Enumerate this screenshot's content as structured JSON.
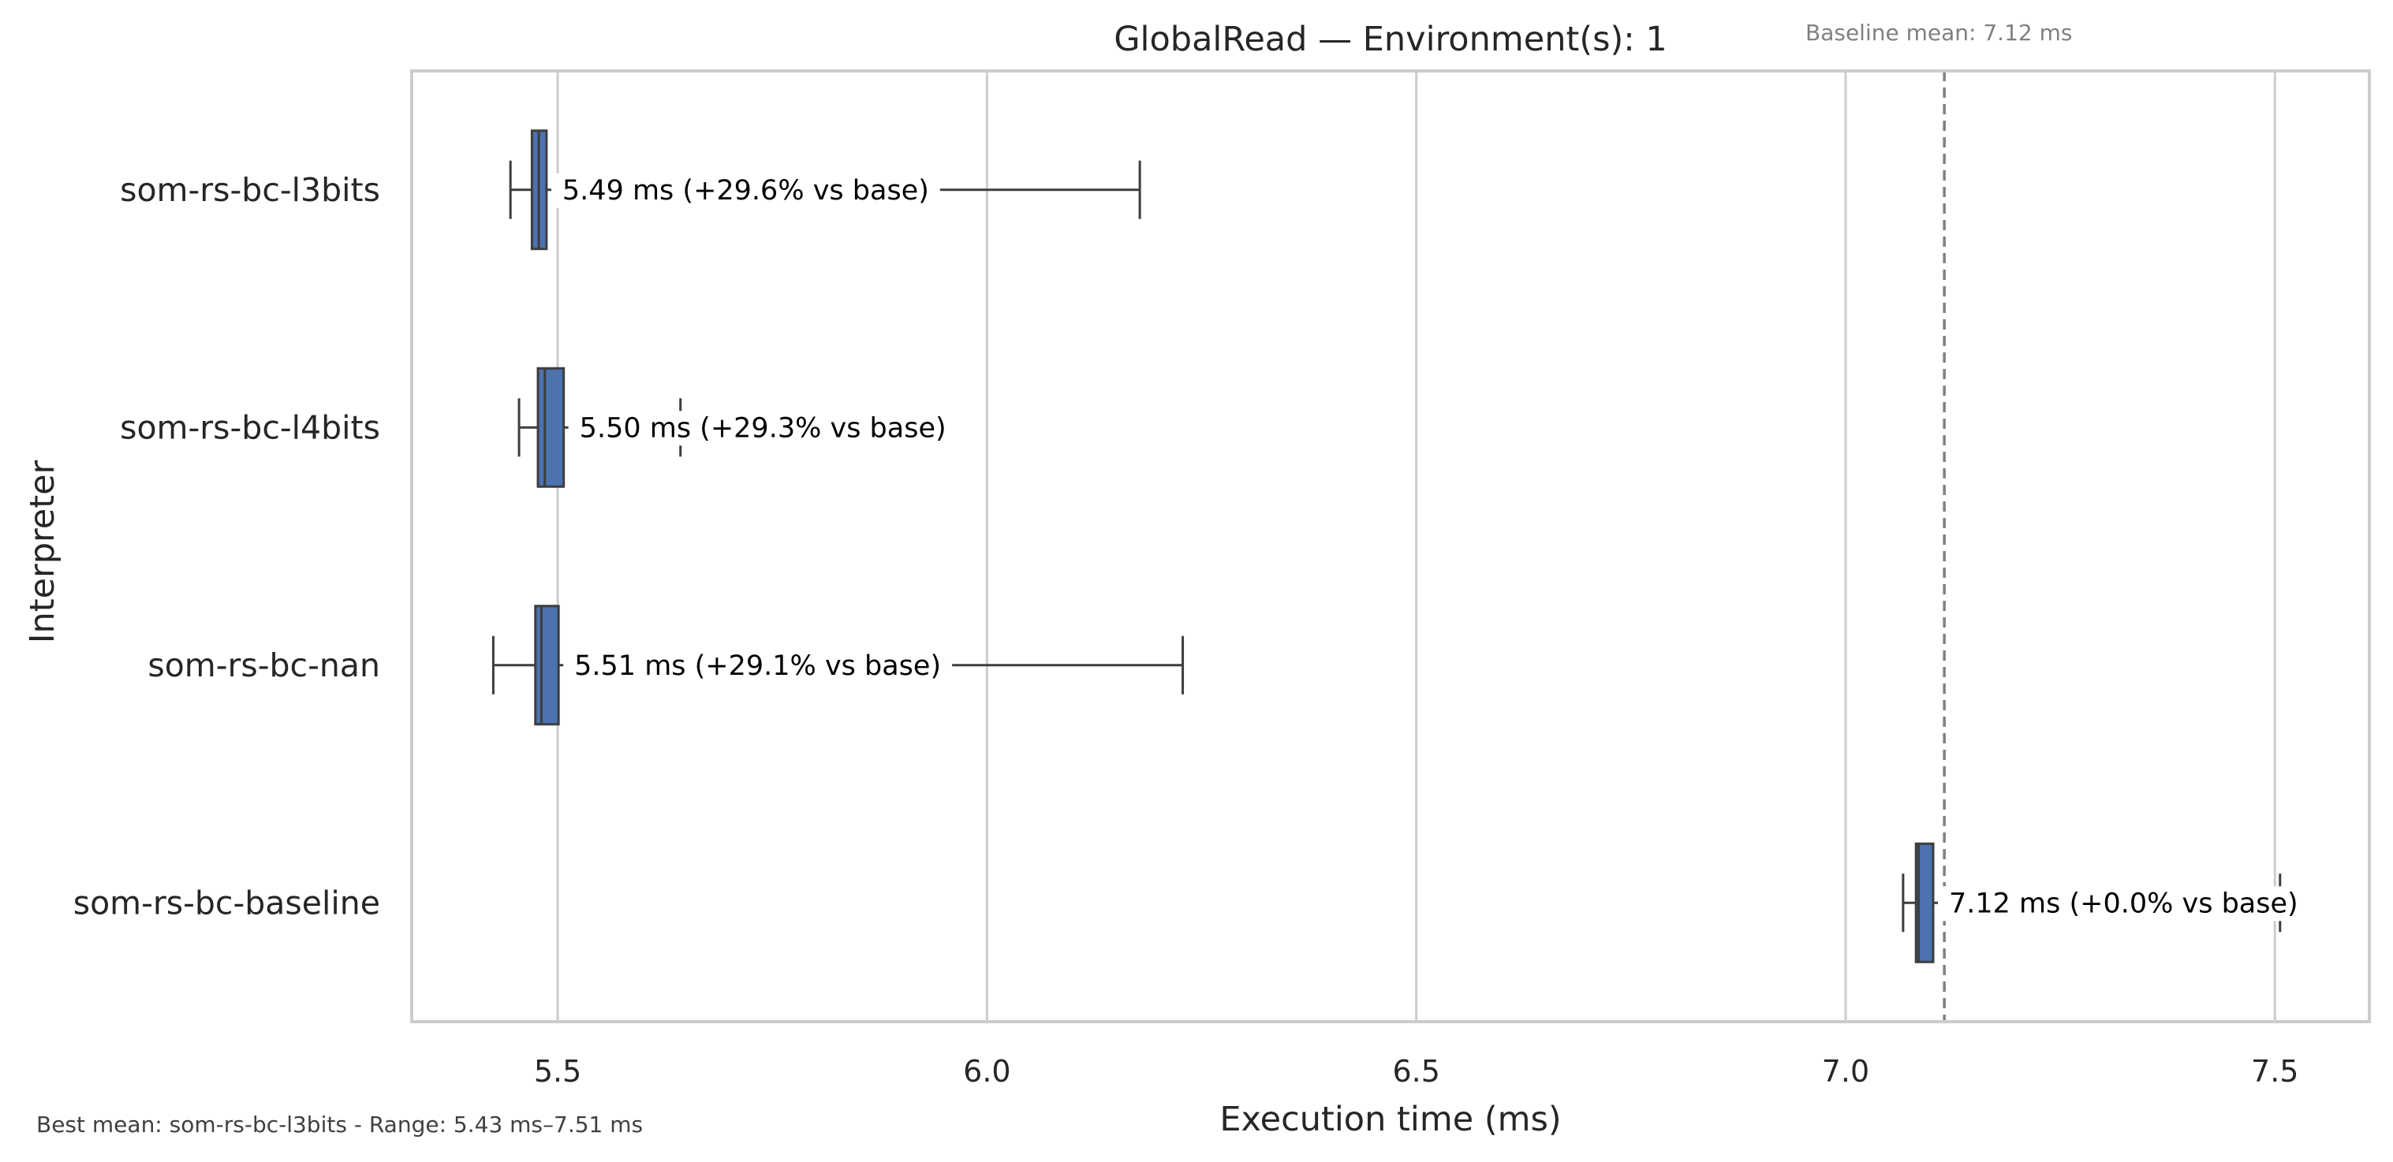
{
  "chart_data": {
    "type": "box",
    "orientation": "horizontal",
    "title": "GlobalRead — Environment(s): 1",
    "xlabel": "Execution time (ms)",
    "ylabel": "Interpreter",
    "xlim": [
      5.33,
      7.61
    ],
    "xticks": [
      5.5,
      6.0,
      6.5,
      7.0,
      7.5
    ],
    "xtick_labels": [
      "5.5",
      "6.0",
      "6.5",
      "7.0",
      "7.5"
    ],
    "grid": "x",
    "box_color": "#4c72b0",
    "categories": [
      "som-rs-bc-l3bits",
      "som-rs-bc-l4bits",
      "som-rs-bc-nan",
      "som-rs-bc-baseline"
    ],
    "boxes": [
      {
        "category": "som-rs-bc-l3bits",
        "whisker_low": 5.445,
        "q1": 5.47,
        "median": 5.478,
        "q3": 5.487,
        "whisker_high": 6.178,
        "annotation": "5.49 ms  (+29.6% vs base)"
      },
      {
        "category": "som-rs-bc-l4bits",
        "whisker_low": 5.455,
        "q1": 5.477,
        "median": 5.485,
        "q3": 5.507,
        "whisker_high": 5.643,
        "annotation": "5.50 ms  (+29.3% vs base)"
      },
      {
        "category": "som-rs-bc-nan",
        "whisker_low": 5.425,
        "q1": 5.474,
        "median": 5.481,
        "q3": 5.501,
        "whisker_high": 6.228,
        "annotation": "5.51 ms  (+29.1% vs base)"
      },
      {
        "category": "som-rs-bc-baseline",
        "whisker_low": 7.067,
        "q1": 7.082,
        "median": 7.085,
        "q3": 7.102,
        "whisker_high": 7.506,
        "annotation": "7.12 ms  (+0.0% vs base)"
      }
    ],
    "baseline": {
      "value": 7.115,
      "label": "Baseline mean: 7.12 ms"
    },
    "footer": "Best mean: som-rs-bc-l3bits - Range: 5.43 ms–7.51 ms"
  }
}
